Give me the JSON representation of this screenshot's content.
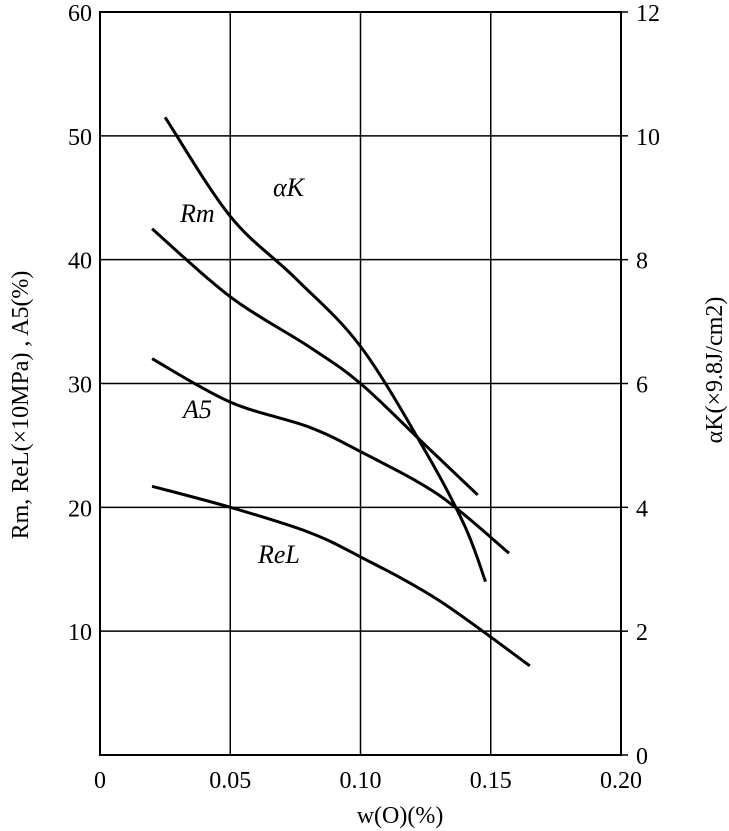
{
  "chart_data": {
    "type": "line",
    "xlabel": "w(O)(%)",
    "ylabel_left": "Rm, ReL(×10MPa) , A5(%)",
    "ylabel_right": "αK(×9.8J/cm2)",
    "xlim": [
      0,
      0.2
    ],
    "ylim_left": [
      0,
      60
    ],
    "ylim_right": [
      0,
      12
    ],
    "x_ticks": [
      "0",
      "0.05",
      "0.10",
      "0.15",
      "0.20"
    ],
    "y_left_ticks": [
      "10",
      "20",
      "30",
      "40",
      "50",
      "60"
    ],
    "y_right_ticks": [
      "0",
      "2",
      "4",
      "6",
      "8",
      "10",
      "12"
    ],
    "grid": true,
    "series": [
      {
        "name": "αK",
        "axis": "right",
        "x": [
          0.025,
          0.05,
          0.075,
          0.1,
          0.125,
          0.14,
          0.148
        ],
        "y": [
          10.3,
          8.7,
          7.7,
          6.6,
          4.9,
          3.7,
          2.8
        ]
      },
      {
        "name": "Rm",
        "axis": "left",
        "x": [
          0.02,
          0.05,
          0.08,
          0.1,
          0.125,
          0.145
        ],
        "y": [
          42.5,
          37.0,
          33.0,
          30.0,
          25.0,
          21.0
        ]
      },
      {
        "name": "A5",
        "axis": "left",
        "x": [
          0.02,
          0.05,
          0.08,
          0.1,
          0.13,
          0.157
        ],
        "y": [
          32.0,
          28.5,
          26.5,
          24.5,
          21.0,
          16.3
        ]
      },
      {
        "name": "ReL",
        "axis": "left",
        "x": [
          0.02,
          0.05,
          0.08,
          0.1,
          0.13,
          0.165
        ],
        "y": [
          21.7,
          20.0,
          18.0,
          16.0,
          12.5,
          7.2
        ]
      }
    ]
  }
}
